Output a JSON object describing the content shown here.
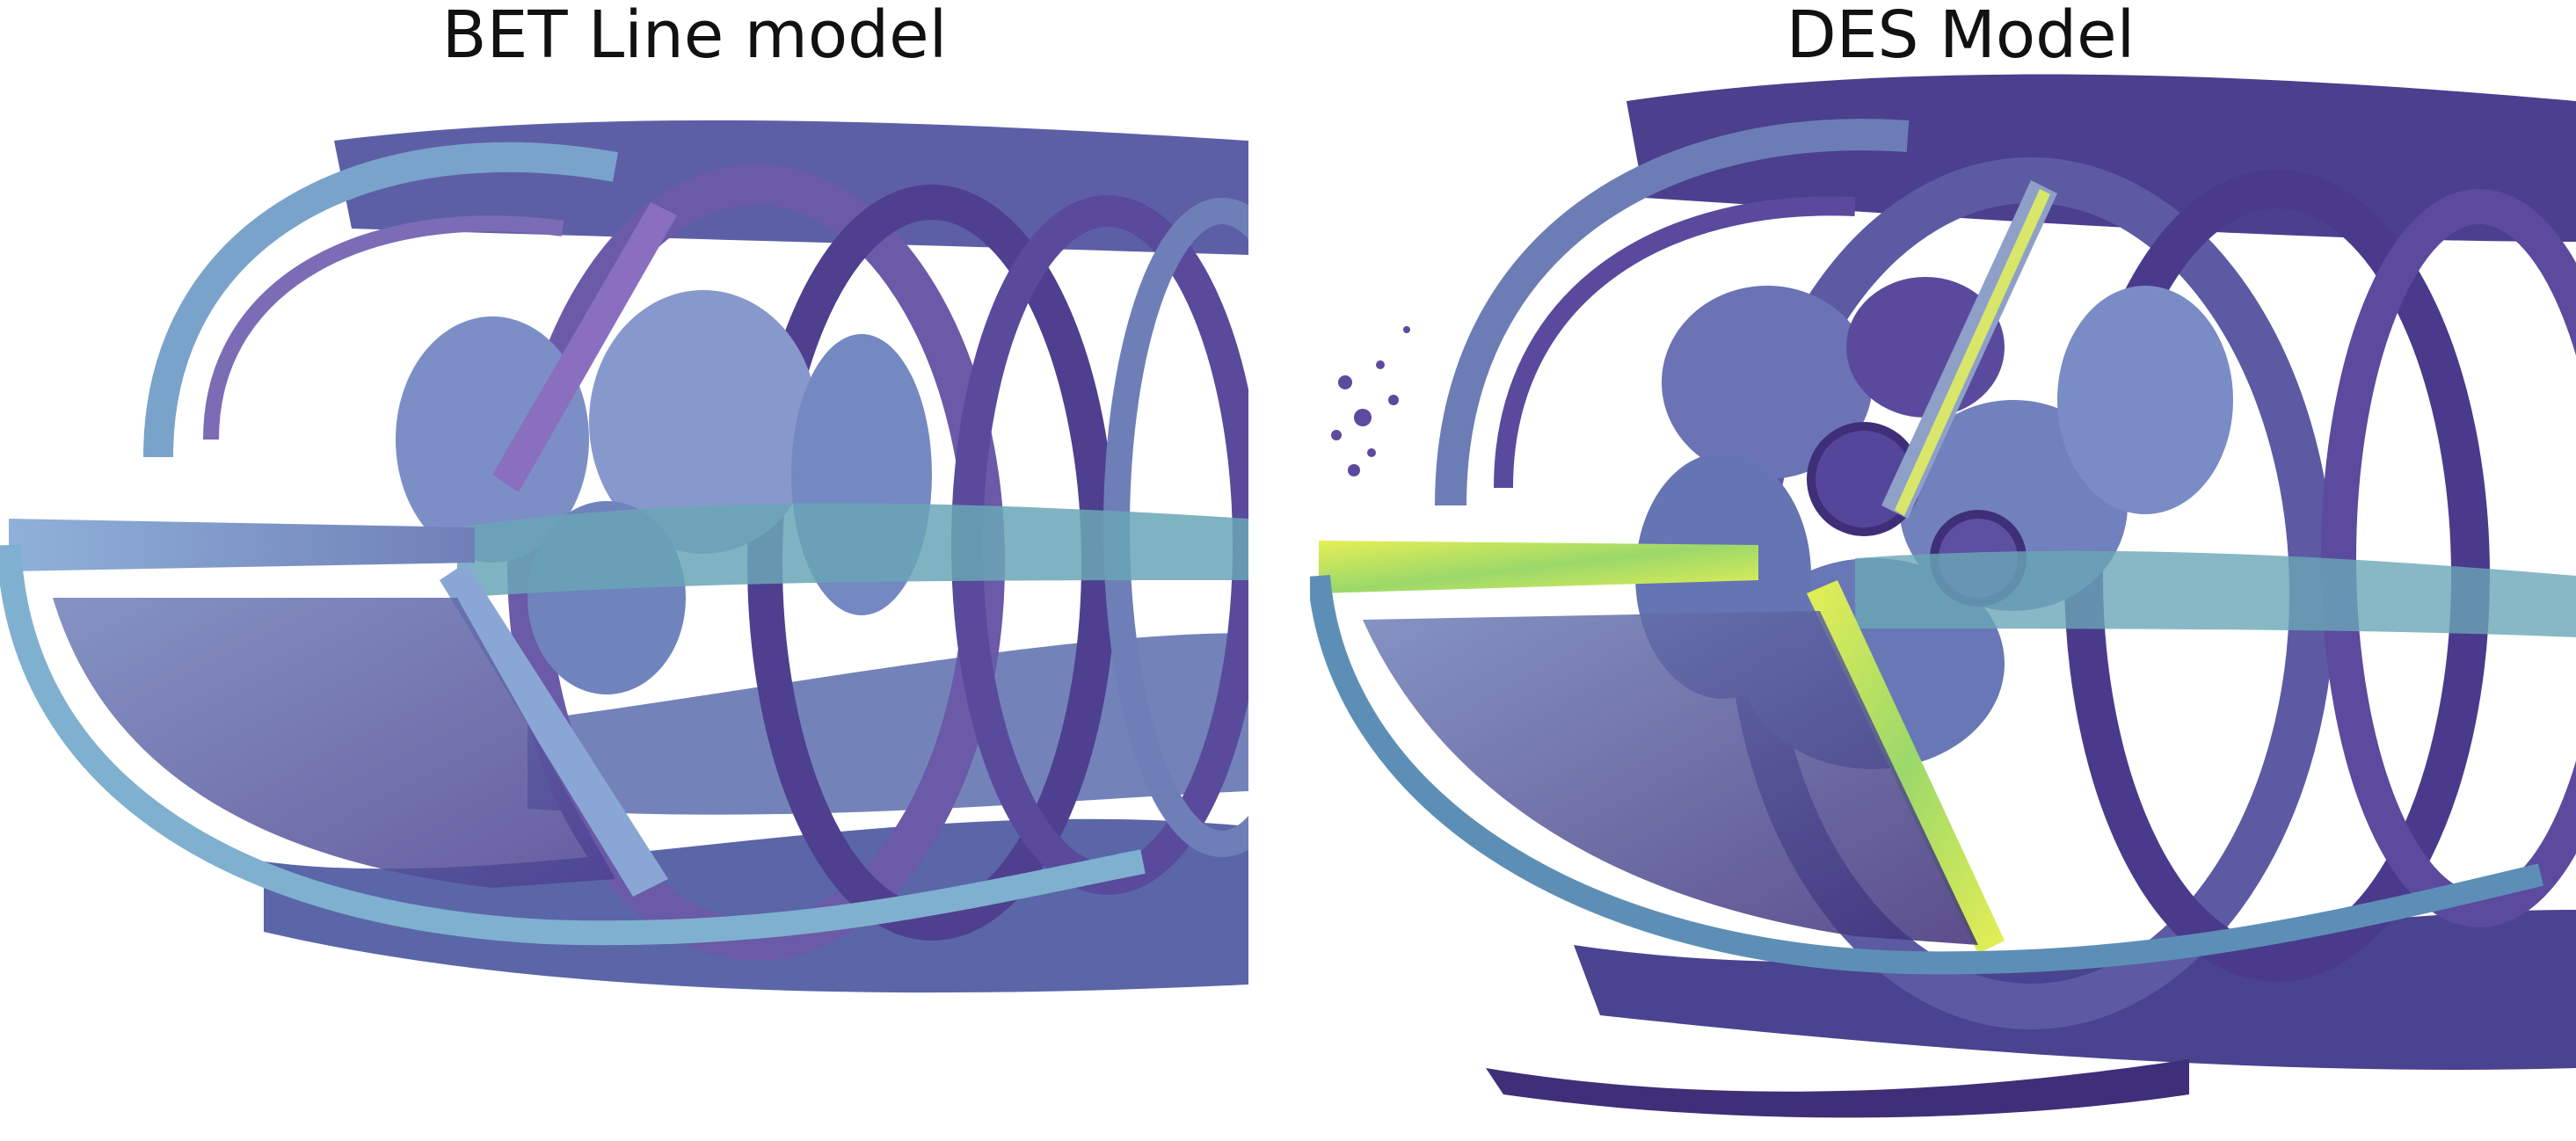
{
  "panels": [
    {
      "title": "BET Line model",
      "visualization": "vortex-isosurface-wake-rendering"
    },
    {
      "title": "DES Model",
      "visualization": "vortex-isosurface-wake-rendering"
    }
  ],
  "colors": {
    "purple_dark": "#3e2f78",
    "purple": "#5b4a9e",
    "violet": "#7a5fb0",
    "blue_gray": "#6f80b8",
    "steel_blue": "#7b93c8",
    "light_blue": "#8fb1d8",
    "teal": "#6aa6b6",
    "yellow": "#e6ef55",
    "green": "#7fd26b",
    "background": "#ffffff"
  }
}
